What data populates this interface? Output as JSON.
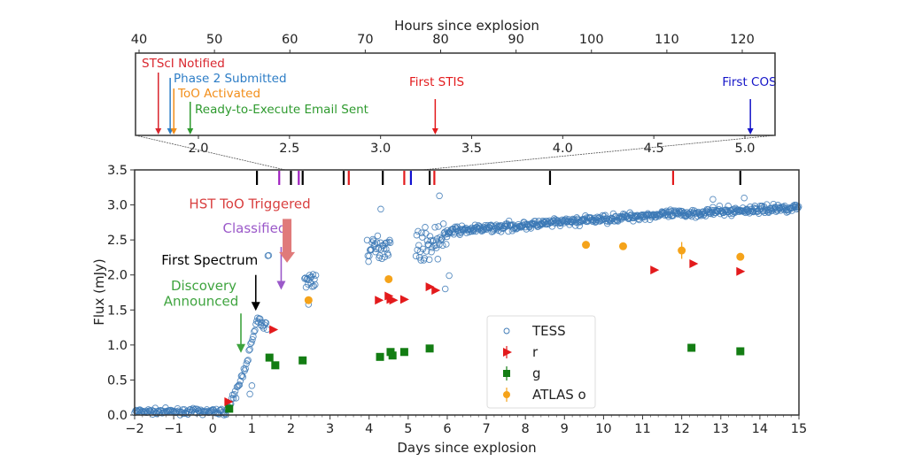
{
  "chart_data": {
    "type": "scatter",
    "main": {
      "xlabel": "Days since explosion",
      "ylabel": "Flux (mJy)",
      "xlim": [
        -2,
        15
      ],
      "ylim": [
        0,
        3.5
      ],
      "xticks": [
        -2,
        -1,
        0,
        1,
        2,
        3,
        4,
        5,
        6,
        7,
        8,
        9,
        10,
        11,
        12,
        13,
        14,
        15
      ],
      "yticks": [
        "0.0",
        "0.5",
        "1.0",
        "1.5",
        "2.0",
        "2.5",
        "3.0",
        "3.5"
      ],
      "series": [
        {
          "name": "TESS",
          "marker": "open-circle",
          "color": "#3b78b5"
        },
        {
          "name": "r",
          "marker": "triangle-right",
          "color": "#e31a1c",
          "points": [
            [
              0.4,
              0.19
            ],
            [
              1.55,
              1.22
            ],
            [
              4.25,
              1.64
            ],
            [
              4.5,
              1.7
            ],
            [
              4.55,
              1.65
            ],
            [
              4.62,
              1.64
            ],
            [
              4.9,
              1.65
            ],
            [
              5.55,
              1.83
            ],
            [
              5.7,
              1.78
            ],
            [
              11.3,
              2.07
            ],
            [
              12.3,
              2.16
            ],
            [
              13.5,
              2.05
            ]
          ]
        },
        {
          "name": "g",
          "marker": "square",
          "color": "#137d13",
          "points": [
            [
              0.42,
              0.09
            ],
            [
              1.45,
              0.82
            ],
            [
              1.6,
              0.71
            ],
            [
              2.3,
              0.78
            ],
            [
              4.28,
              0.83
            ],
            [
              4.55,
              0.9
            ],
            [
              4.6,
              0.85
            ],
            [
              4.9,
              0.9
            ],
            [
              5.55,
              0.95
            ],
            [
              12.25,
              0.96
            ],
            [
              13.5,
              0.91
            ]
          ]
        },
        {
          "name": "ATLAS o",
          "marker": "circle",
          "color": "#f5a31a",
          "points": [
            [
              2.45,
              1.64
            ],
            [
              4.5,
              1.94
            ],
            [
              9.55,
              2.43
            ],
            [
              10.5,
              2.41
            ],
            [
              12.0,
              2.35
            ],
            [
              13.5,
              2.26
            ]
          ]
        }
      ],
      "legend": {
        "placement": "lower-center",
        "entries": [
          "TESS",
          "r",
          "g",
          "ATLAS o"
        ]
      },
      "spectra_ticks": [
        {
          "x": 1.13,
          "color": "#000000"
        },
        {
          "x": 1.7,
          "color": "#a020c0"
        },
        {
          "x": 2.0,
          "color": "#000000"
        },
        {
          "x": 2.2,
          "color": "#a020c0"
        },
        {
          "x": 2.3,
          "color": "#000000"
        },
        {
          "x": 3.35,
          "color": "#000000"
        },
        {
          "x": 3.48,
          "color": "#e31a1c"
        },
        {
          "x": 4.35,
          "color": "#000000"
        },
        {
          "x": 4.9,
          "color": "#e31a1c"
        },
        {
          "x": 5.07,
          "color": "#1010d0"
        },
        {
          "x": 5.55,
          "color": "#000000"
        },
        {
          "x": 5.67,
          "color": "#e31a1c"
        },
        {
          "x": 8.63,
          "color": "#000000"
        },
        {
          "x": 11.78,
          "color": "#e31a1c"
        },
        {
          "x": 13.5,
          "color": "#000000"
        }
      ],
      "annotations": [
        {
          "text": "Discovery",
          "text2": "Announced",
          "x": 0.72,
          "y_from": 1.45,
          "y_to": 0.9,
          "color": "#3fa43f"
        },
        {
          "text": "First Spectrum",
          "x": 1.1,
          "y_from": 2.0,
          "y_to": 1.5,
          "color": "#000000"
        },
        {
          "text": "Classified",
          "x": 1.75,
          "y_from": 2.4,
          "y_to": 1.8,
          "color": "#9b59c9"
        },
        {
          "text": "HST ToO Triggered",
          "x": 1.9,
          "y_from": 2.8,
          "y_to": 2.2,
          "color": "#e07a7a",
          "label_color": "#d94040"
        }
      ]
    },
    "inset": {
      "top_xlabel": "Hours since explosion",
      "top_xticks": [
        40,
        50,
        60,
        70,
        80,
        90,
        100,
        110,
        120
      ],
      "bottom_xticks": [
        "2.0",
        "2.5",
        "3.0",
        "3.5",
        "4.0",
        "4.5",
        "5.0"
      ],
      "xlim_days": [
        1.65,
        5.17
      ],
      "events": [
        {
          "label": "STScI Notified",
          "x_days": 1.78,
          "color": "#d9262e"
        },
        {
          "label": "Phase 2 Submitted",
          "x_days": 1.845,
          "color": "#2d7dc6"
        },
        {
          "label": "ToO Activated",
          "x_days": 1.865,
          "color": "#f28e1a"
        },
        {
          "label": "Ready-to-Execute Email Sent",
          "x_days": 1.955,
          "color": "#2e9a2e"
        },
        {
          "label": "First STIS",
          "x_days": 3.3,
          "color": "#e31a1c"
        },
        {
          "label": "First COS",
          "x_days": 5.03,
          "color": "#1414c8"
        }
      ]
    }
  }
}
